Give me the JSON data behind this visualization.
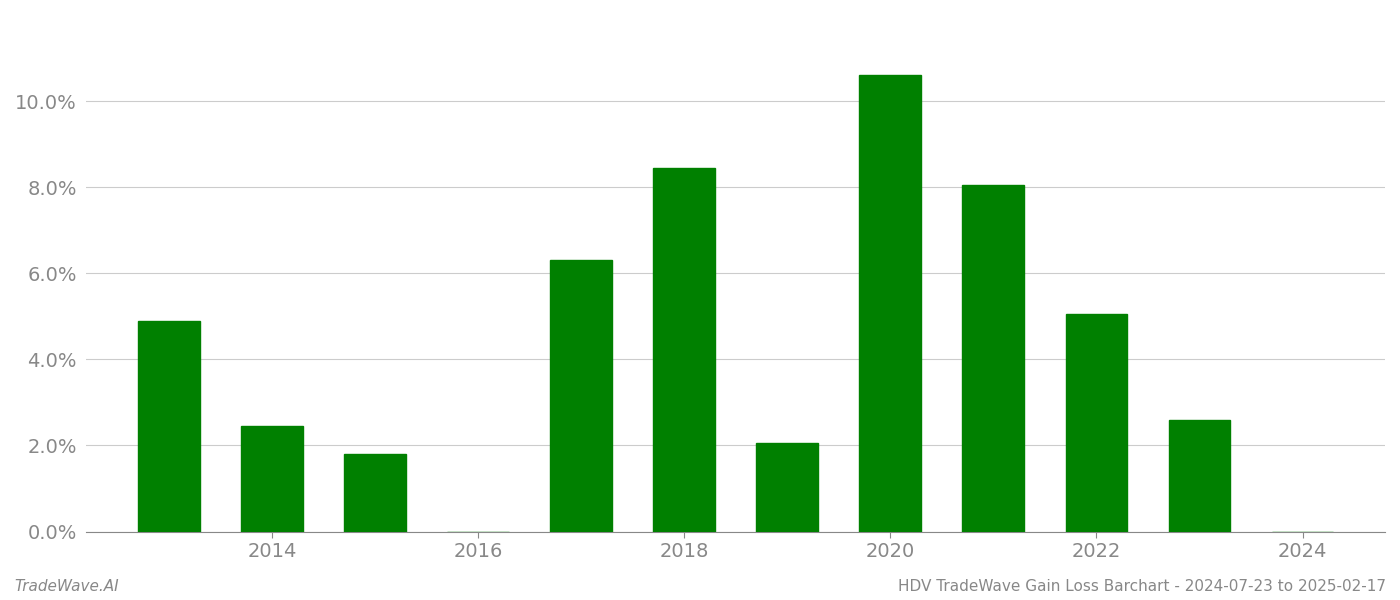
{
  "years": [
    2013,
    2014,
    2015,
    2016,
    2017,
    2018,
    2019,
    2020,
    2021,
    2022,
    2023,
    2024
  ],
  "values": [
    0.049,
    0.0245,
    0.018,
    0.0,
    0.063,
    0.0845,
    0.0205,
    0.106,
    0.0805,
    0.0505,
    0.026,
    0.0
  ],
  "bar_color": "#008000",
  "background_color": "#ffffff",
  "grid_color": "#cccccc",
  "axis_color": "#888888",
  "tick_label_color": "#888888",
  "footer_left": "TradeWave.AI",
  "footer_right": "HDV TradeWave Gain Loss Barchart - 2024-07-23 to 2025-02-17",
  "footer_fontsize": 11,
  "ylim": [
    0,
    0.12
  ],
  "ytick_values": [
    0.0,
    0.02,
    0.04,
    0.06,
    0.08,
    0.1
  ],
  "bar_width": 0.6
}
